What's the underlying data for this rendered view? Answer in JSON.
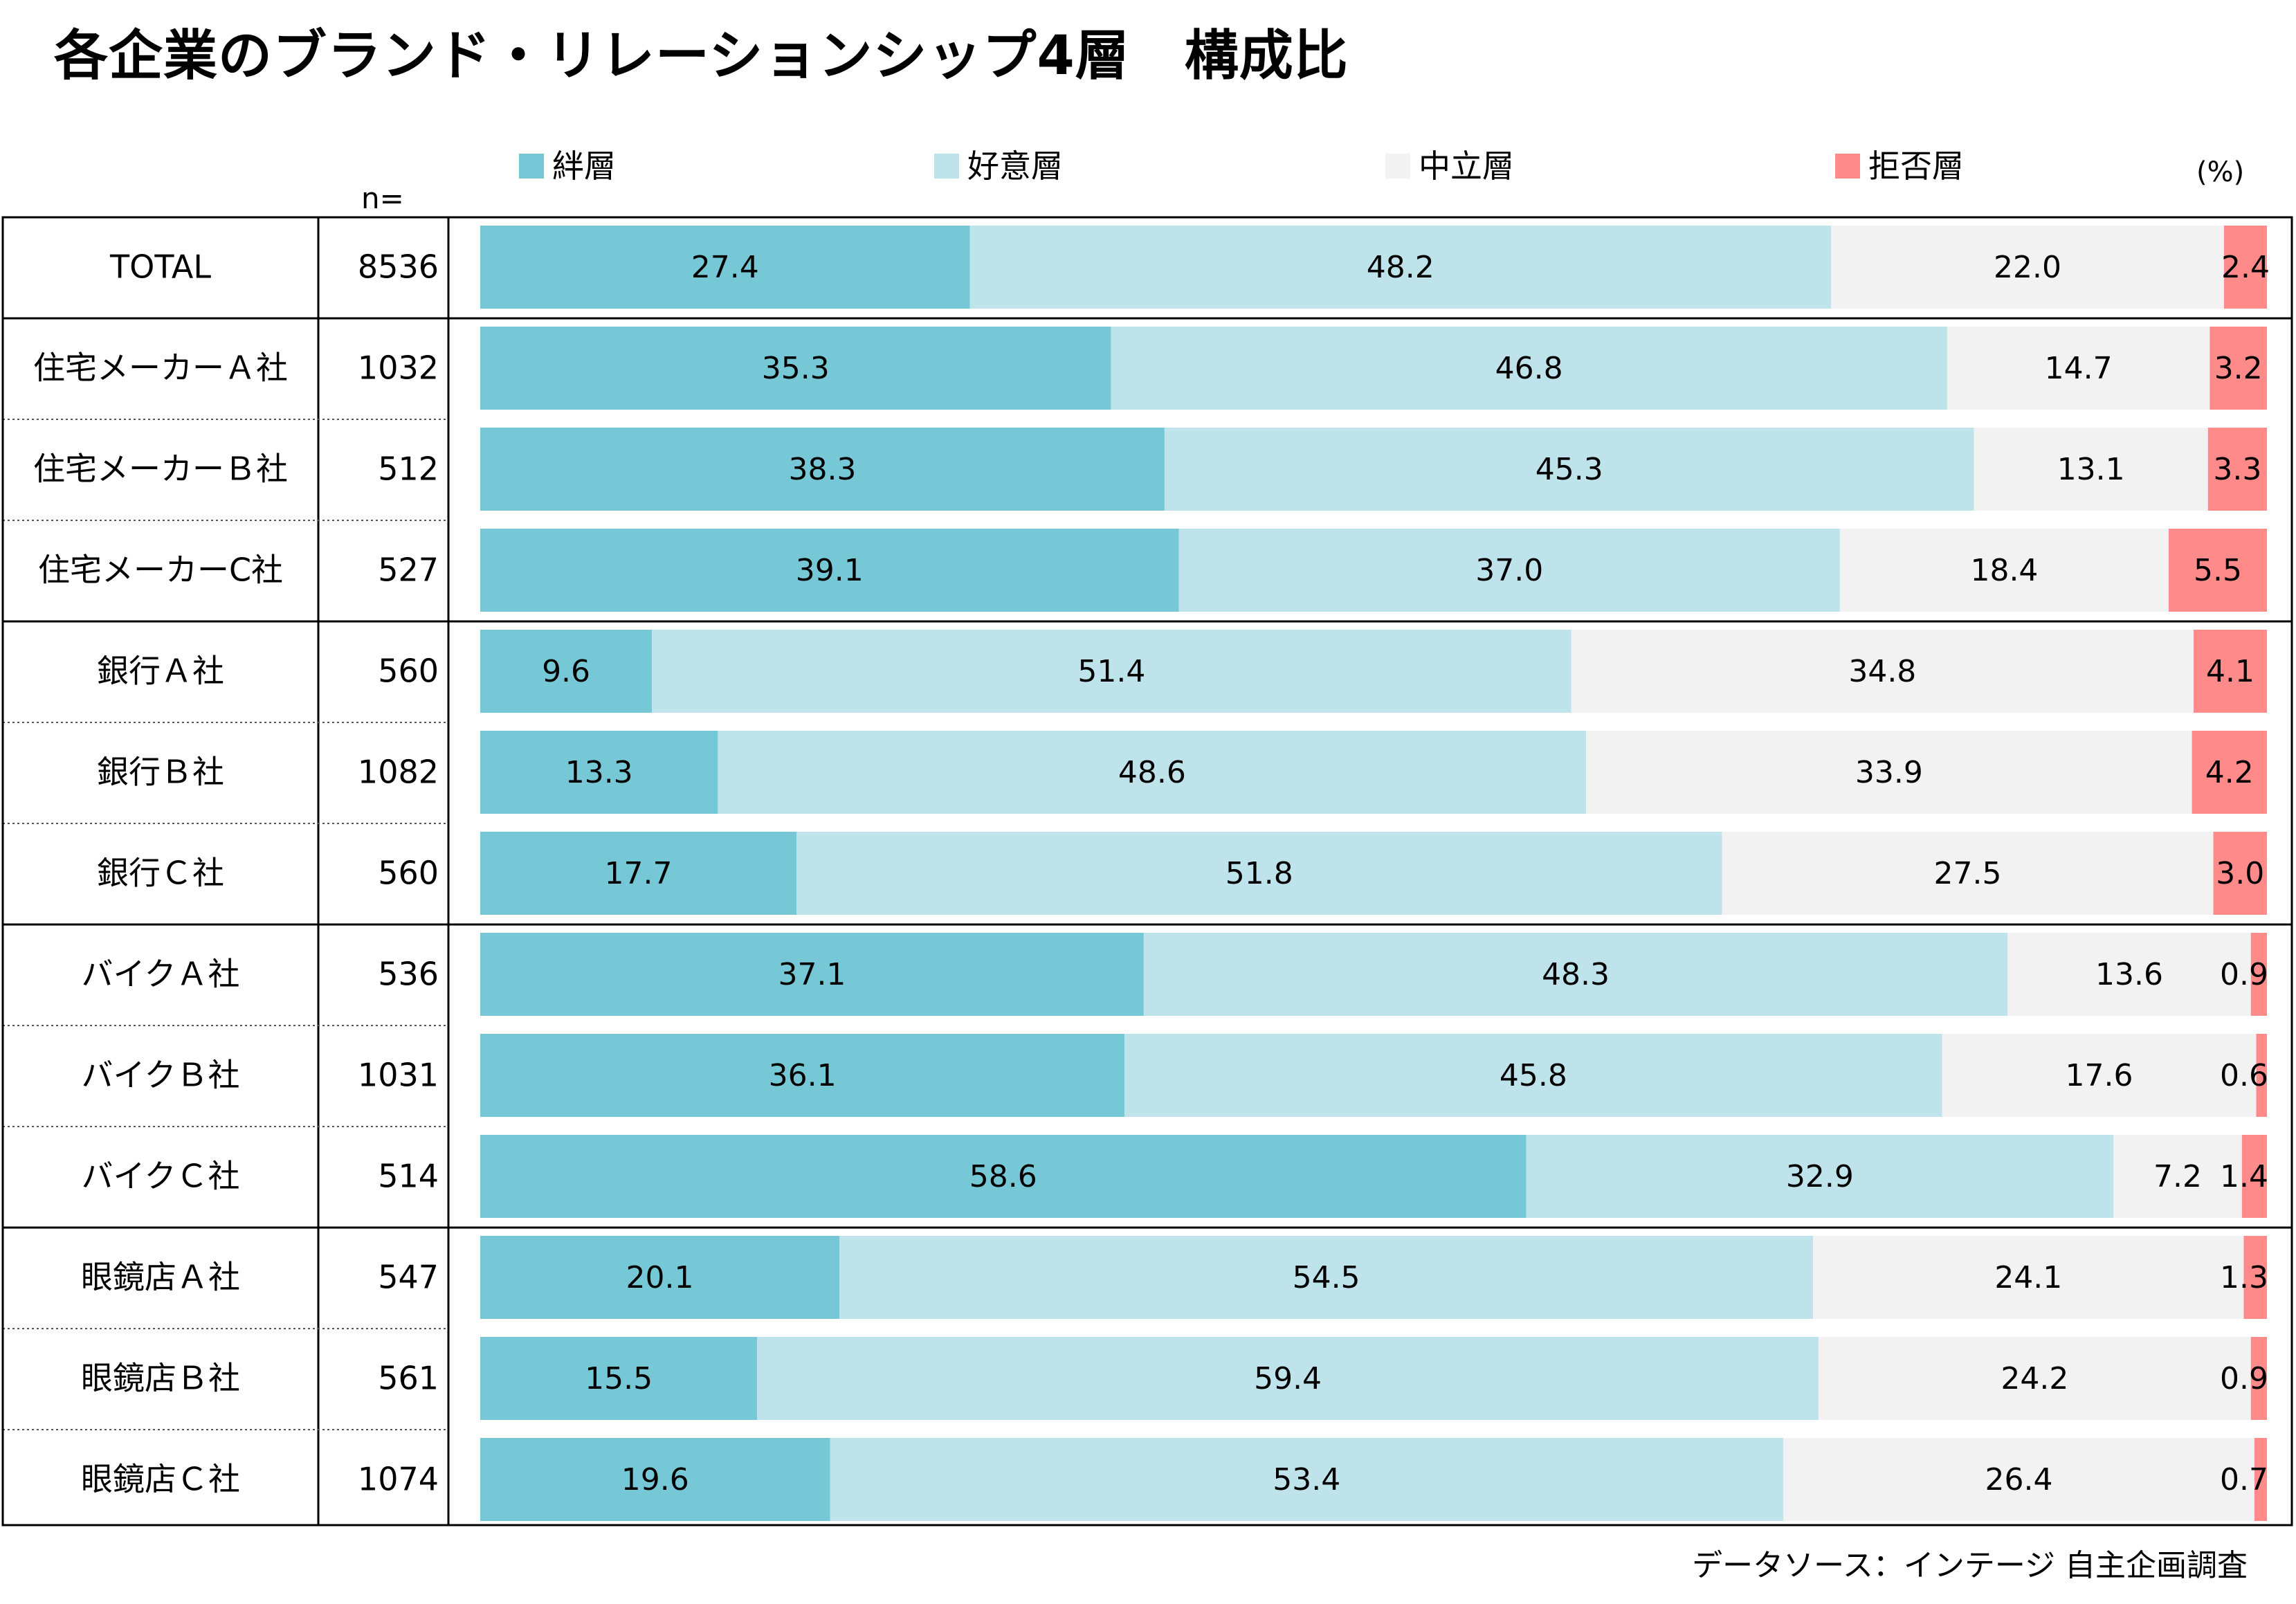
{
  "title": "各企業のブランド・リレーションシップ4層　構成比",
  "n_header": "n=",
  "unit": "(%)",
  "source": "データソース：インテージ 自主企画調査",
  "colors": {
    "kizuna": "#77c8d6",
    "kouiso": "#bfe3eb",
    "chuuritsu": "#f2f2f2",
    "kyohi": "#ff8a8a"
  },
  "chart_data": {
    "type": "bar",
    "orientation": "horizontal",
    "stacked": true,
    "xlim": [
      0,
      100
    ],
    "legend_position": "top",
    "categories": [
      "TOTAL",
      "住宅メーカーＡ社",
      "住宅メーカーＢ社",
      "住宅メーカーC社",
      "銀行Ａ社",
      "銀行Ｂ社",
      "銀行Ｃ社",
      "バイクＡ社",
      "バイクＢ社",
      "バイクＣ社",
      "眼鏡店Ａ社",
      "眼鏡店Ｂ社",
      "眼鏡店Ｃ社"
    ],
    "n": [
      "8536",
      "1032",
      "512",
      "527",
      "560",
      "1082",
      "560",
      "536",
      "1031",
      "514",
      "547",
      "561",
      "1074"
    ],
    "series": [
      {
        "name": "絆層",
        "color": "#77c8d6",
        "values": [
          27.4,
          35.3,
          38.3,
          39.1,
          9.6,
          13.3,
          17.7,
          37.1,
          36.1,
          58.6,
          20.1,
          15.5,
          19.6
        ]
      },
      {
        "name": "好意層",
        "color": "#bfe3eb",
        "values": [
          48.2,
          46.8,
          45.3,
          37.0,
          51.4,
          48.6,
          51.8,
          48.3,
          45.8,
          32.9,
          54.5,
          59.4,
          53.4
        ]
      },
      {
        "name": "中立層",
        "color": "#f2f2f2",
        "values": [
          22.0,
          14.7,
          13.1,
          18.4,
          34.8,
          33.9,
          27.5,
          13.6,
          17.6,
          7.2,
          24.1,
          24.2,
          26.4
        ]
      },
      {
        "name": "拒否層",
        "color": "#ff8a8a",
        "values": [
          2.4,
          3.2,
          3.3,
          5.5,
          4.1,
          4.2,
          3.0,
          0.9,
          0.6,
          1.4,
          1.3,
          0.9,
          0.7
        ]
      }
    ],
    "groups": [
      [
        0
      ],
      [
        1,
        2,
        3
      ],
      [
        4,
        5,
        6
      ],
      [
        7,
        8,
        9
      ],
      [
        10,
        11,
        12
      ]
    ]
  }
}
